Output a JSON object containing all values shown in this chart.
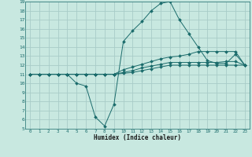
{
  "xlabel": "Humidex (Indice chaleur)",
  "xlim": [
    -0.5,
    23.5
  ],
  "ylim": [
    5,
    19
  ],
  "xticks": [
    0,
    1,
    2,
    3,
    4,
    5,
    6,
    7,
    8,
    9,
    10,
    11,
    12,
    13,
    14,
    15,
    16,
    17,
    18,
    19,
    20,
    21,
    22,
    23
  ],
  "yticks": [
    5,
    6,
    7,
    8,
    9,
    10,
    11,
    12,
    13,
    14,
    15,
    16,
    17,
    18,
    19
  ],
  "bg_color": "#c8e8e0",
  "grid_color": "#a8ccc8",
  "line_color": "#1a6b6b",
  "series": [
    {
      "x": [
        0,
        1,
        2,
        3,
        4,
        5,
        6,
        7,
        8,
        9,
        10,
        11,
        12,
        13,
        14,
        15,
        16,
        17,
        18,
        19,
        20,
        21,
        22,
        23
      ],
      "y": [
        11,
        11,
        11,
        11,
        11,
        10.0,
        9.7,
        6.3,
        5.3,
        7.7,
        14.6,
        15.8,
        16.8,
        18.0,
        18.8,
        19.0,
        17.0,
        15.5,
        14.0,
        12.5,
        12.2,
        12.2,
        13.2,
        12.0
      ],
      "marker": "D",
      "markersize": 2.0
    },
    {
      "x": [
        0,
        1,
        2,
        3,
        4,
        5,
        6,
        7,
        8,
        9,
        10,
        11,
        12,
        13,
        14,
        15,
        16,
        17,
        18,
        19,
        20,
        21,
        22,
        23
      ],
      "y": [
        11,
        11,
        11,
        11,
        11,
        11,
        11,
        11,
        11,
        11,
        11.5,
        11.8,
        12.1,
        12.4,
        12.7,
        12.9,
        13.0,
        13.2,
        13.5,
        13.5,
        13.5,
        13.5,
        13.5,
        12.0
      ],
      "marker": "D",
      "markersize": 2.0
    },
    {
      "x": [
        0,
        1,
        2,
        3,
        4,
        5,
        6,
        7,
        8,
        9,
        10,
        11,
        12,
        13,
        14,
        15,
        16,
        17,
        18,
        19,
        20,
        21,
        22,
        23
      ],
      "y": [
        11,
        11,
        11,
        11,
        11,
        11,
        11,
        11,
        11,
        11,
        11.2,
        11.4,
        11.7,
        11.9,
        12.1,
        12.3,
        12.3,
        12.3,
        12.3,
        12.3,
        12.3,
        12.4,
        12.4,
        12.0
      ],
      "marker": "D",
      "markersize": 2.0
    },
    {
      "x": [
        0,
        1,
        2,
        3,
        4,
        5,
        6,
        7,
        8,
        9,
        10,
        11,
        12,
        13,
        14,
        15,
        16,
        17,
        18,
        19,
        20,
        21,
        22,
        23
      ],
      "y": [
        11,
        11,
        11,
        11,
        11,
        11,
        11,
        11,
        11,
        11,
        11.1,
        11.2,
        11.4,
        11.6,
        11.8,
        12.0,
        12.0,
        12.0,
        12.0,
        12.0,
        12.0,
        12.0,
        12.0,
        12.0
      ],
      "marker": "D",
      "markersize": 2.0
    }
  ]
}
